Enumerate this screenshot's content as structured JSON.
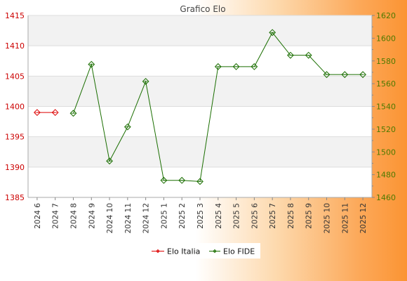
{
  "chart_data": {
    "type": "line",
    "title": "Grafico Elo",
    "categories": [
      "2024 6",
      "2024 7",
      "2024 8",
      "2024 9",
      "2024 10",
      "2024 11",
      "2024 12",
      "2025 1",
      "2025 2",
      "2025 3",
      "2025 4",
      "2025 5",
      "2025 6",
      "2025 7",
      "2025 8",
      "2025 9",
      "2025 10",
      "2025 11",
      "2025 12"
    ],
    "left_axis": {
      "ylim": [
        1385,
        1415
      ],
      "ticks": [
        1385,
        1390,
        1395,
        1400,
        1405,
        1410,
        1415
      ],
      "color": "#cc0000"
    },
    "right_axis": {
      "ylim": [
        1460,
        1620
      ],
      "ticks": [
        1460,
        1480,
        1500,
        1520,
        1540,
        1560,
        1580,
        1600,
        1620
      ],
      "color": "#4d7a00"
    },
    "grid": true,
    "legend_position": "bottom",
    "series": [
      {
        "name": "Elo Italia",
        "axis": "left",
        "color": "#dd0000",
        "values": [
          1399,
          1399,
          null,
          null,
          null,
          null,
          null,
          null,
          null,
          null,
          null,
          null,
          null,
          null,
          null,
          null,
          null,
          null,
          null
        ]
      },
      {
        "name": "Elo FIDE",
        "axis": "right",
        "color": "#1a6e00",
        "values": [
          null,
          null,
          1534,
          1577,
          1492,
          1522,
          1562,
          1475,
          1475,
          1474,
          1575,
          1575,
          1575,
          1605,
          1585,
          1585,
          1568,
          1568,
          1568
        ]
      }
    ]
  }
}
